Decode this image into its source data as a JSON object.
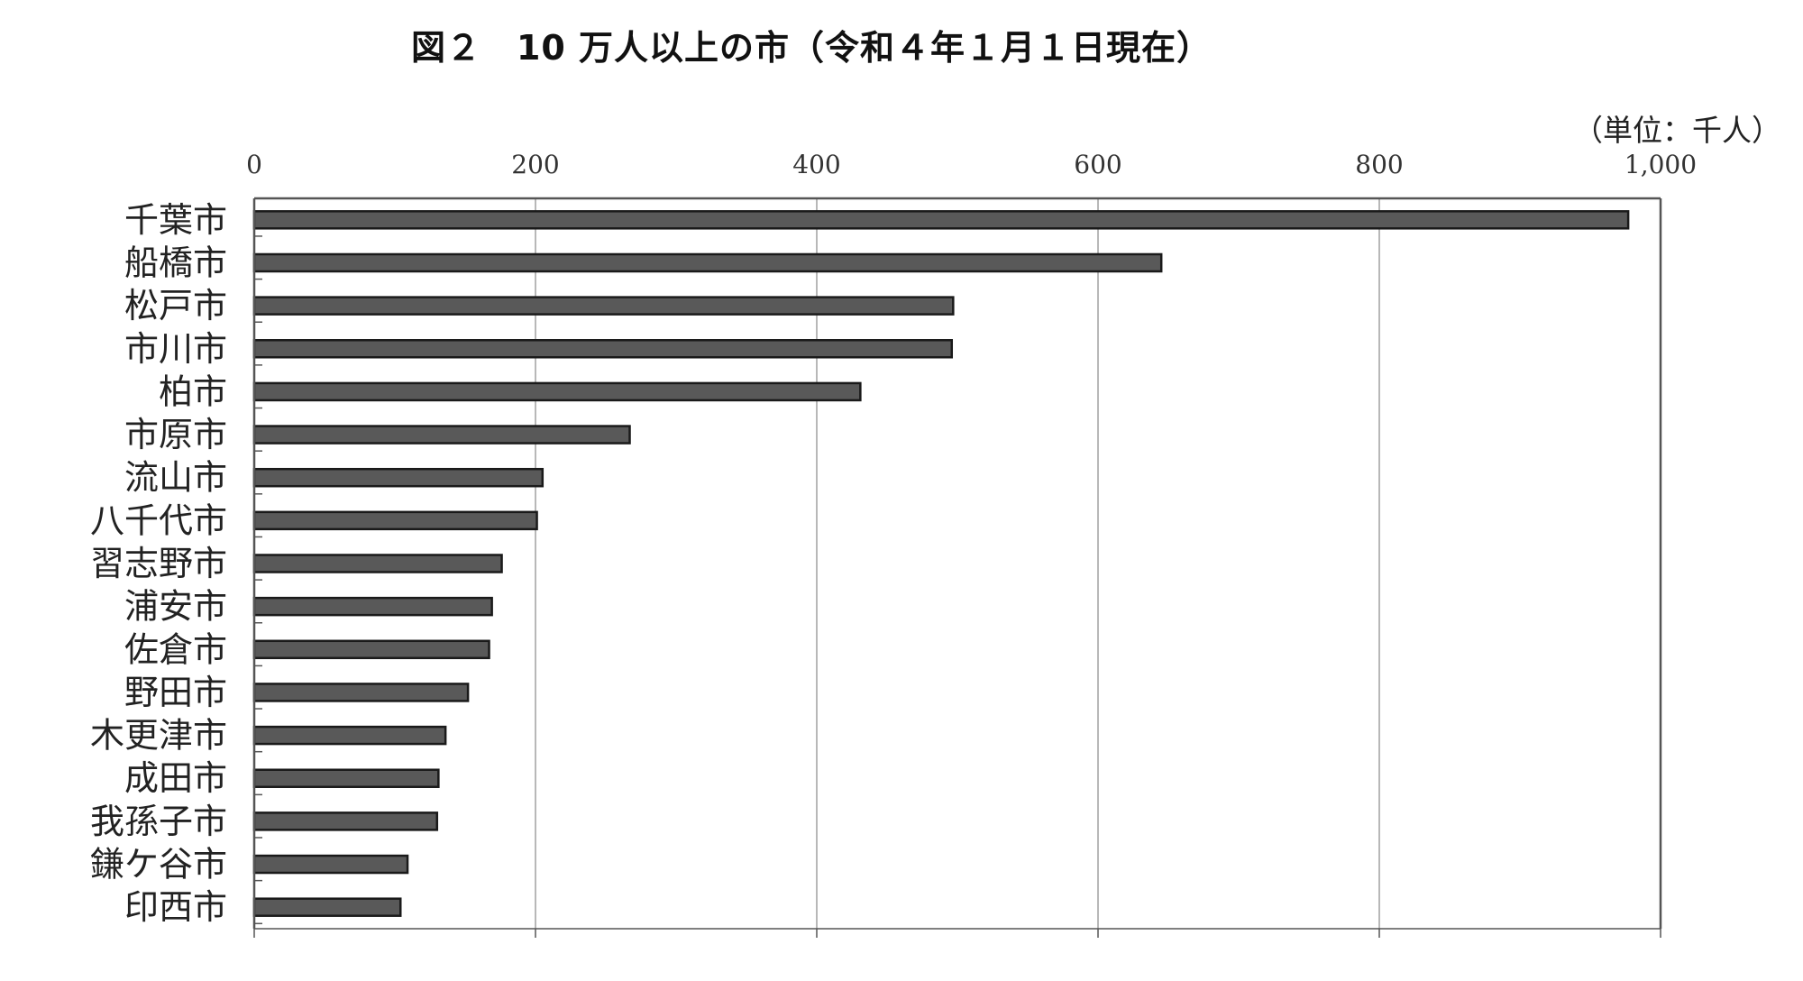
{
  "chart_data": {
    "type": "bar",
    "orientation": "horizontal",
    "title": "図２　10 万人以上の市（令和４年１月１日現在）",
    "unit": "（単位：千人）",
    "xlim": [
      0,
      1000
    ],
    "x_ticks": [
      0,
      200,
      400,
      600,
      800,
      1000
    ],
    "x_tick_labels": [
      "0",
      "200",
      "400",
      "600",
      "800",
      "1,000"
    ],
    "x_axis_position": "top",
    "grid": true,
    "categories": [
      "千葉市",
      "船橋市",
      "松戸市",
      "市川市",
      "柏市",
      "市原市",
      "流山市",
      "八千代市",
      "習志野市",
      "浦安市",
      "佐倉市",
      "野田市",
      "木更津市",
      "成田市",
      "我孫子市",
      "鎌ケ谷市",
      "印西市"
    ],
    "values": [
      977,
      645,
      497,
      496,
      431,
      267,
      205,
      201,
      176,
      169,
      167,
      152,
      136,
      131,
      130,
      109,
      104
    ],
    "colors": {
      "bar_fill": "#595959",
      "bar_stroke": "#1a1a1a",
      "axis": "#555555",
      "grid": "#888888"
    }
  }
}
